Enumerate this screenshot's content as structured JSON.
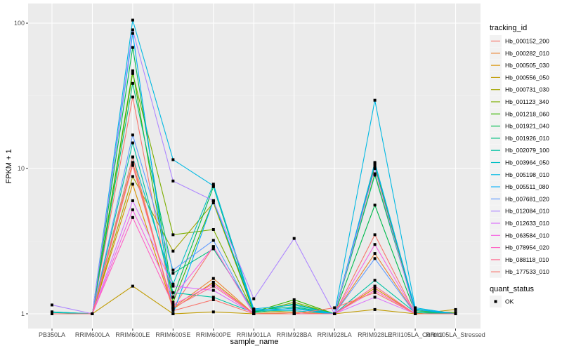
{
  "chart_data": {
    "type": "line",
    "title": "",
    "xlabel": "sample_name",
    "ylabel": "FPKM + 1",
    "yscale": "log10",
    "ylim": [
      0.83,
      125
    ],
    "yticks": [
      1,
      10,
      100
    ],
    "ytick_labels": [
      "1",
      "10",
      "100"
    ],
    "grid": true,
    "legend_position": "right",
    "categories": [
      "PB350LA",
      "RRIM600LA",
      "RRIM600LE",
      "RRIM600SE",
      "RRIM600PE",
      "RRIM901LA",
      "RRIM928BA",
      "RRIM928LA",
      "RRIM928LE",
      "RRII105LA_Control",
      "RRII105LA_Stressed"
    ],
    "series": [
      {
        "name": "Hb_000152_200",
        "color": "#F8766D",
        "values": [
          1.0,
          1.0,
          31.0,
          1.1,
          2.9,
          1.0,
          1.02,
          1.0,
          3.5,
          1.0,
          1.0
        ]
      },
      {
        "name": "Hb_000282_010",
        "color": "#EA8331",
        "values": [
          1.0,
          1.0,
          11.0,
          1.1,
          1.75,
          1.0,
          1.02,
          1.0,
          2.6,
          1.0,
          1.0
        ]
      },
      {
        "name": "Hb_000505_030",
        "color": "#D89000",
        "values": [
          1.0,
          1.0,
          7.8,
          1.08,
          1.65,
          1.0,
          1.0,
          1.0,
          1.5,
          1.0,
          1.0
        ]
      },
      {
        "name": "Hb_000556_050",
        "color": "#C09B00",
        "values": [
          1.0,
          1.0,
          1.55,
          1.0,
          1.03,
          1.0,
          1.0,
          1.0,
          1.07,
          1.0,
          1.07
        ]
      },
      {
        "name": "Hb_000731_030",
        "color": "#A3A500",
        "values": [
          1.0,
          1.0,
          8.8,
          2.7,
          5.8,
          1.02,
          1.05,
          1.0,
          9.2,
          1.05,
          1.02
        ]
      },
      {
        "name": "Hb_001123_340",
        "color": "#7CAE00",
        "values": [
          1.0,
          1.0,
          45.0,
          3.5,
          3.8,
          1.02,
          1.2,
          1.0,
          10.5,
          1.02,
          1.02
        ]
      },
      {
        "name": "Hb_001218_060",
        "color": "#39B600",
        "values": [
          1.0,
          1.0,
          47.0,
          1.2,
          6.0,
          1.03,
          1.25,
          1.0,
          10.3,
          1.05,
          1.0
        ]
      },
      {
        "name": "Hb_001921_040",
        "color": "#00BB4E",
        "values": [
          1.0,
          1.0,
          68.0,
          1.3,
          7.5,
          1.03,
          1.17,
          1.0,
          5.6,
          1.02,
          1.0
        ]
      },
      {
        "name": "Hb_001926_010",
        "color": "#00BF7D",
        "values": [
          1.03,
          1.0,
          38.5,
          1.9,
          2.8,
          1.05,
          1.12,
          1.0,
          9.0,
          1.05,
          1.0
        ]
      },
      {
        "name": "Hb_002079_100",
        "color": "#00C1A3",
        "values": [
          1.02,
          1.0,
          15.0,
          1.4,
          1.3,
          1.02,
          1.1,
          1.0,
          1.7,
          1.02,
          1.0
        ]
      },
      {
        "name": "Hb_003964_050",
        "color": "#00BFC4",
        "values": [
          1.03,
          1.0,
          12.0,
          1.6,
          7.8,
          1.05,
          1.05,
          1.0,
          11.0,
          1.08,
          1.0
        ]
      },
      {
        "name": "Hb_005198_010",
        "color": "#00B9E3",
        "values": [
          1.0,
          1.0,
          105.0,
          11.5,
          7.6,
          1.08,
          1.15,
          1.0,
          29.5,
          1.1,
          1.0
        ]
      },
      {
        "name": "Hb_005511_080",
        "color": "#00ADFA",
        "values": [
          1.0,
          1.0,
          85.0,
          1.0,
          6.0,
          1.07,
          1.08,
          1.0,
          10.8,
          1.07,
          1.0
        ]
      },
      {
        "name": "Hb_007681_020",
        "color": "#619CFF",
        "values": [
          1.0,
          1.0,
          17.0,
          2.0,
          3.2,
          1.0,
          1.0,
          1.0,
          2.4,
          1.0,
          1.0
        ]
      },
      {
        "name": "Hb_012084_010",
        "color": "#AE87FF",
        "values": [
          1.15,
          1.0,
          90.0,
          8.2,
          6.0,
          1.27,
          3.3,
          1.0,
          10.0,
          1.0,
          1.0
        ]
      },
      {
        "name": "Hb_012633_010",
        "color": "#DB72FB",
        "values": [
          1.0,
          1.0,
          6.0,
          1.55,
          1.45,
          1.0,
          1.0,
          1.0,
          1.3,
          1.0,
          1.0
        ]
      },
      {
        "name": "Hb_063584_010",
        "color": "#F564E3",
        "values": [
          1.0,
          1.0,
          5.2,
          1.3,
          2.9,
          1.0,
          1.0,
          1.0,
          3.0,
          1.0,
          1.0
        ]
      },
      {
        "name": "Hb_078954_020",
        "color": "#FF61C3",
        "values": [
          1.0,
          1.0,
          4.6,
          1.15,
          1.6,
          1.0,
          1.0,
          1.0,
          1.45,
          1.0,
          1.0
        ]
      },
      {
        "name": "Hb_088118_010",
        "color": "#FF6C91",
        "values": [
          1.0,
          1.0,
          10.5,
          1.1,
          1.55,
          1.0,
          1.0,
          1.0,
          1.55,
          1.0,
          1.0
        ]
      },
      {
        "name": "Hb_177533_010",
        "color": "#F8766D",
        "values": [
          1.0,
          1.0,
          12.0,
          1.05,
          1.25,
          1.0,
          1.0,
          1.1,
          1.4,
          1.0,
          1.0
        ]
      }
    ],
    "legends": [
      {
        "title": "tracking_id"
      },
      {
        "title": "quant_status",
        "entries": [
          "OK"
        ]
      }
    ]
  }
}
